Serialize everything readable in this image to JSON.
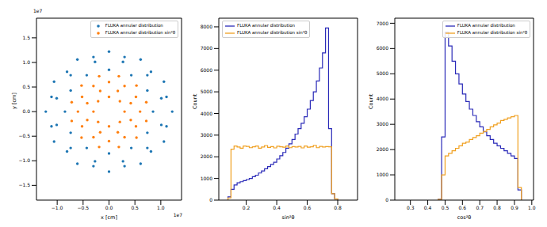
{
  "chart_data": [
    {
      "type": "scatter",
      "x_label": "x [cm]",
      "y_label": "y [cm]",
      "legend": "upper right",
      "annotations": [
        {
          "text": "1e7",
          "axis": "x"
        },
        {
          "text": "1e7",
          "axis": "y"
        }
      ],
      "xlim": [
        -1.4,
        1.4
      ],
      "xticks": [
        {
          "value": -1,
          "label": "−1.0"
        },
        {
          "value": -0.5,
          "label": "−0.5"
        },
        {
          "value": 0,
          "label": "0.0"
        },
        0.5,
        {
          "value": 1,
          "label": "1.0"
        }
      ],
      "ylim": [
        -1.8,
        1.9
      ],
      "yticks": [
        {
          "value": -1.5,
          "label": "−1.5"
        },
        {
          "value": -1,
          "label": "−1.0"
        },
        {
          "value": -0.5,
          "label": "−0.5"
        },
        {
          "value": 0,
          "label": "0.0"
        },
        0.5,
        {
          "value": 1,
          "label": "1.0"
        },
        1.5
      ],
      "series": [
        {
          "name": "FLUKA annular distribution",
          "color": "#1f77b4",
          "marker": "o",
          "x": [
            1.22,
            1.06,
            0.61,
            0,
            -0.61,
            -1.06,
            -1.22,
            -1.06,
            -0.61,
            0,
            0.61,
            1.06,
            1.01,
            0.74,
            0.27,
            -0.27,
            -0.74,
            -1.01,
            -1.01,
            -0.74,
            -0.27,
            0.27,
            0.74,
            1.01,
            0.85,
            0.74,
            0.43,
            0,
            -0.43,
            -0.74,
            -0.85,
            -0.74,
            -0.43,
            0,
            0.43,
            0.74,
            1.11,
            0.81,
            0.3,
            -0.3,
            -0.81,
            -1.11,
            -1.11,
            -0.81,
            -0.3,
            0.3,
            0.81,
            1.11
          ],
          "y": [
            0,
            0.61,
            1.06,
            1.22,
            1.06,
            0.61,
            0,
            -0.61,
            -1.06,
            -1.22,
            -1.06,
            -0.61,
            0.27,
            0.74,
            1.01,
            1.01,
            0.74,
            0.27,
            -0.27,
            -0.74,
            -1.01,
            -1.01,
            -0.74,
            -0.27,
            0,
            0.43,
            0.74,
            0.85,
            0.74,
            0.43,
            0,
            -0.43,
            -0.74,
            -0.85,
            -0.74,
            -0.43,
            0.3,
            0.81,
            1.11,
            1.11,
            0.81,
            0.3,
            -0.3,
            -0.81,
            -1.11,
            -1.11,
            -0.81,
            -0.3
          ]
        },
        {
          "name": "FLUKA annular distribution sin²θ",
          "color": "#ff7f0e",
          "marker": "o",
          "x": [
            0.3,
            0.21,
            0,
            -0.21,
            -0.3,
            -0.21,
            0,
            0.21,
            0.42,
            0.17,
            -0.17,
            -0.42,
            -0.42,
            -0.17,
            0.17,
            0.42,
            0.6,
            0.52,
            0.3,
            0,
            -0.3,
            -0.52,
            -0.6,
            -0.52,
            -0.3,
            0,
            0.3,
            0.52,
            0.72,
            0.53,
            0.19,
            -0.19,
            -0.53,
            -0.72,
            -0.72,
            -0.53,
            -0.19,
            0.19,
            0.53,
            0.72
          ],
          "y": [
            0,
            0.21,
            0.3,
            0.21,
            0,
            -0.21,
            -0.3,
            -0.21,
            0.17,
            0.42,
            0.42,
            0.17,
            -0.17,
            -0.42,
            -0.42,
            -0.17,
            0,
            0.3,
            0.52,
            0.6,
            0.52,
            0.3,
            0,
            -0.3,
            -0.52,
            -0.6,
            -0.52,
            -0.3,
            0.19,
            0.53,
            0.72,
            0.72,
            0.53,
            0.19,
            -0.19,
            -0.53,
            -0.72,
            -0.72,
            -0.53,
            -0.19
          ]
        }
      ]
    },
    {
      "type": "histogram",
      "x_label": "sin²θ",
      "y_label": "Count",
      "legend": "upper left",
      "xlim": [
        0.02,
        0.93
      ],
      "xticks": [
        0.2,
        0.4,
        0.6,
        0.8
      ],
      "ylim": [
        0,
        8400
      ],
      "yticks": [
        0,
        1000,
        2000,
        3000,
        4000,
        5000,
        6000,
        7000,
        8000
      ],
      "bins": [
        0.08,
        0.1,
        0.12,
        0.14,
        0.16,
        0.18,
        0.2,
        0.22,
        0.24,
        0.26,
        0.28,
        0.3,
        0.32,
        0.34,
        0.36,
        0.38,
        0.4,
        0.42,
        0.44,
        0.46,
        0.48,
        0.5,
        0.52,
        0.54,
        0.56,
        0.58,
        0.6,
        0.62,
        0.64,
        0.66,
        0.68,
        0.7,
        0.72,
        0.74,
        0.76,
        0.78,
        0.8
      ],
      "series": [
        {
          "name": "FLUKA annular distribution",
          "color": "#2a2ab8",
          "values": [
            150,
            500,
            700,
            800,
            850,
            900,
            950,
            1000,
            1080,
            1150,
            1250,
            1350,
            1450,
            1550,
            1650,
            1750,
            1900,
            2050,
            2200,
            2400,
            2600,
            2800,
            3050,
            3300,
            3550,
            3850,
            4200,
            4600,
            5000,
            5500,
            6100,
            6800,
            7950,
            3300,
            300,
            50
          ]
        },
        {
          "name": "FLUKA annular distribution sin²θ",
          "color": "#f0a020",
          "values": [
            100,
            2350,
            2500,
            2450,
            2400,
            2500,
            2480,
            2420,
            2460,
            2500,
            2400,
            2450,
            2520,
            2430,
            2470,
            2410,
            2490,
            2460,
            2440,
            2500,
            2420,
            2470,
            2450,
            2480,
            2410,
            2500,
            2440,
            2460,
            2530,
            2420,
            2480,
            2450,
            2470,
            2460,
            300,
            50
          ]
        }
      ]
    },
    {
      "type": "histogram",
      "x_label": "cos²θ",
      "y_label": "Count",
      "legend": "upper right",
      "xlim": [
        0.21,
        1.01
      ],
      "xticks": [
        0.3,
        0.4,
        0.5,
        0.6,
        0.7,
        0.8,
        0.9,
        {
          "value": 1,
          "label": "1.0"
        }
      ],
      "ylim": [
        0,
        7200
      ],
      "yticks": [
        0,
        1000,
        2000,
        3000,
        4000,
        5000,
        6000,
        7000
      ],
      "bins": [
        0.46,
        0.48,
        0.5,
        0.52,
        0.54,
        0.56,
        0.58,
        0.6,
        0.62,
        0.64,
        0.66,
        0.68,
        0.7,
        0.72,
        0.74,
        0.76,
        0.78,
        0.8,
        0.82,
        0.84,
        0.86,
        0.88,
        0.9,
        0.92,
        0.94
      ],
      "series": [
        {
          "name": "FLUKA annular distribution",
          "color": "#2a2ab8",
          "values": [
            30,
            2500,
            6650,
            6100,
            5500,
            5000,
            4600,
            4200,
            3900,
            3600,
            3350,
            3100,
            2900,
            2700,
            2550,
            2400,
            2250,
            2150,
            2050,
            1950,
            1850,
            1750,
            1650,
            400
          ]
        },
        {
          "name": "FLUKA annular distribution sin²θ",
          "color": "#f0a020",
          "values": [
            30,
            1000,
            1750,
            1850,
            1950,
            2050,
            2150,
            2250,
            2300,
            2400,
            2480,
            2550,
            2650,
            2720,
            2800,
            2900,
            2980,
            3050,
            3150,
            3200,
            3250,
            3300,
            3350,
            500
          ]
        }
      ]
    }
  ]
}
